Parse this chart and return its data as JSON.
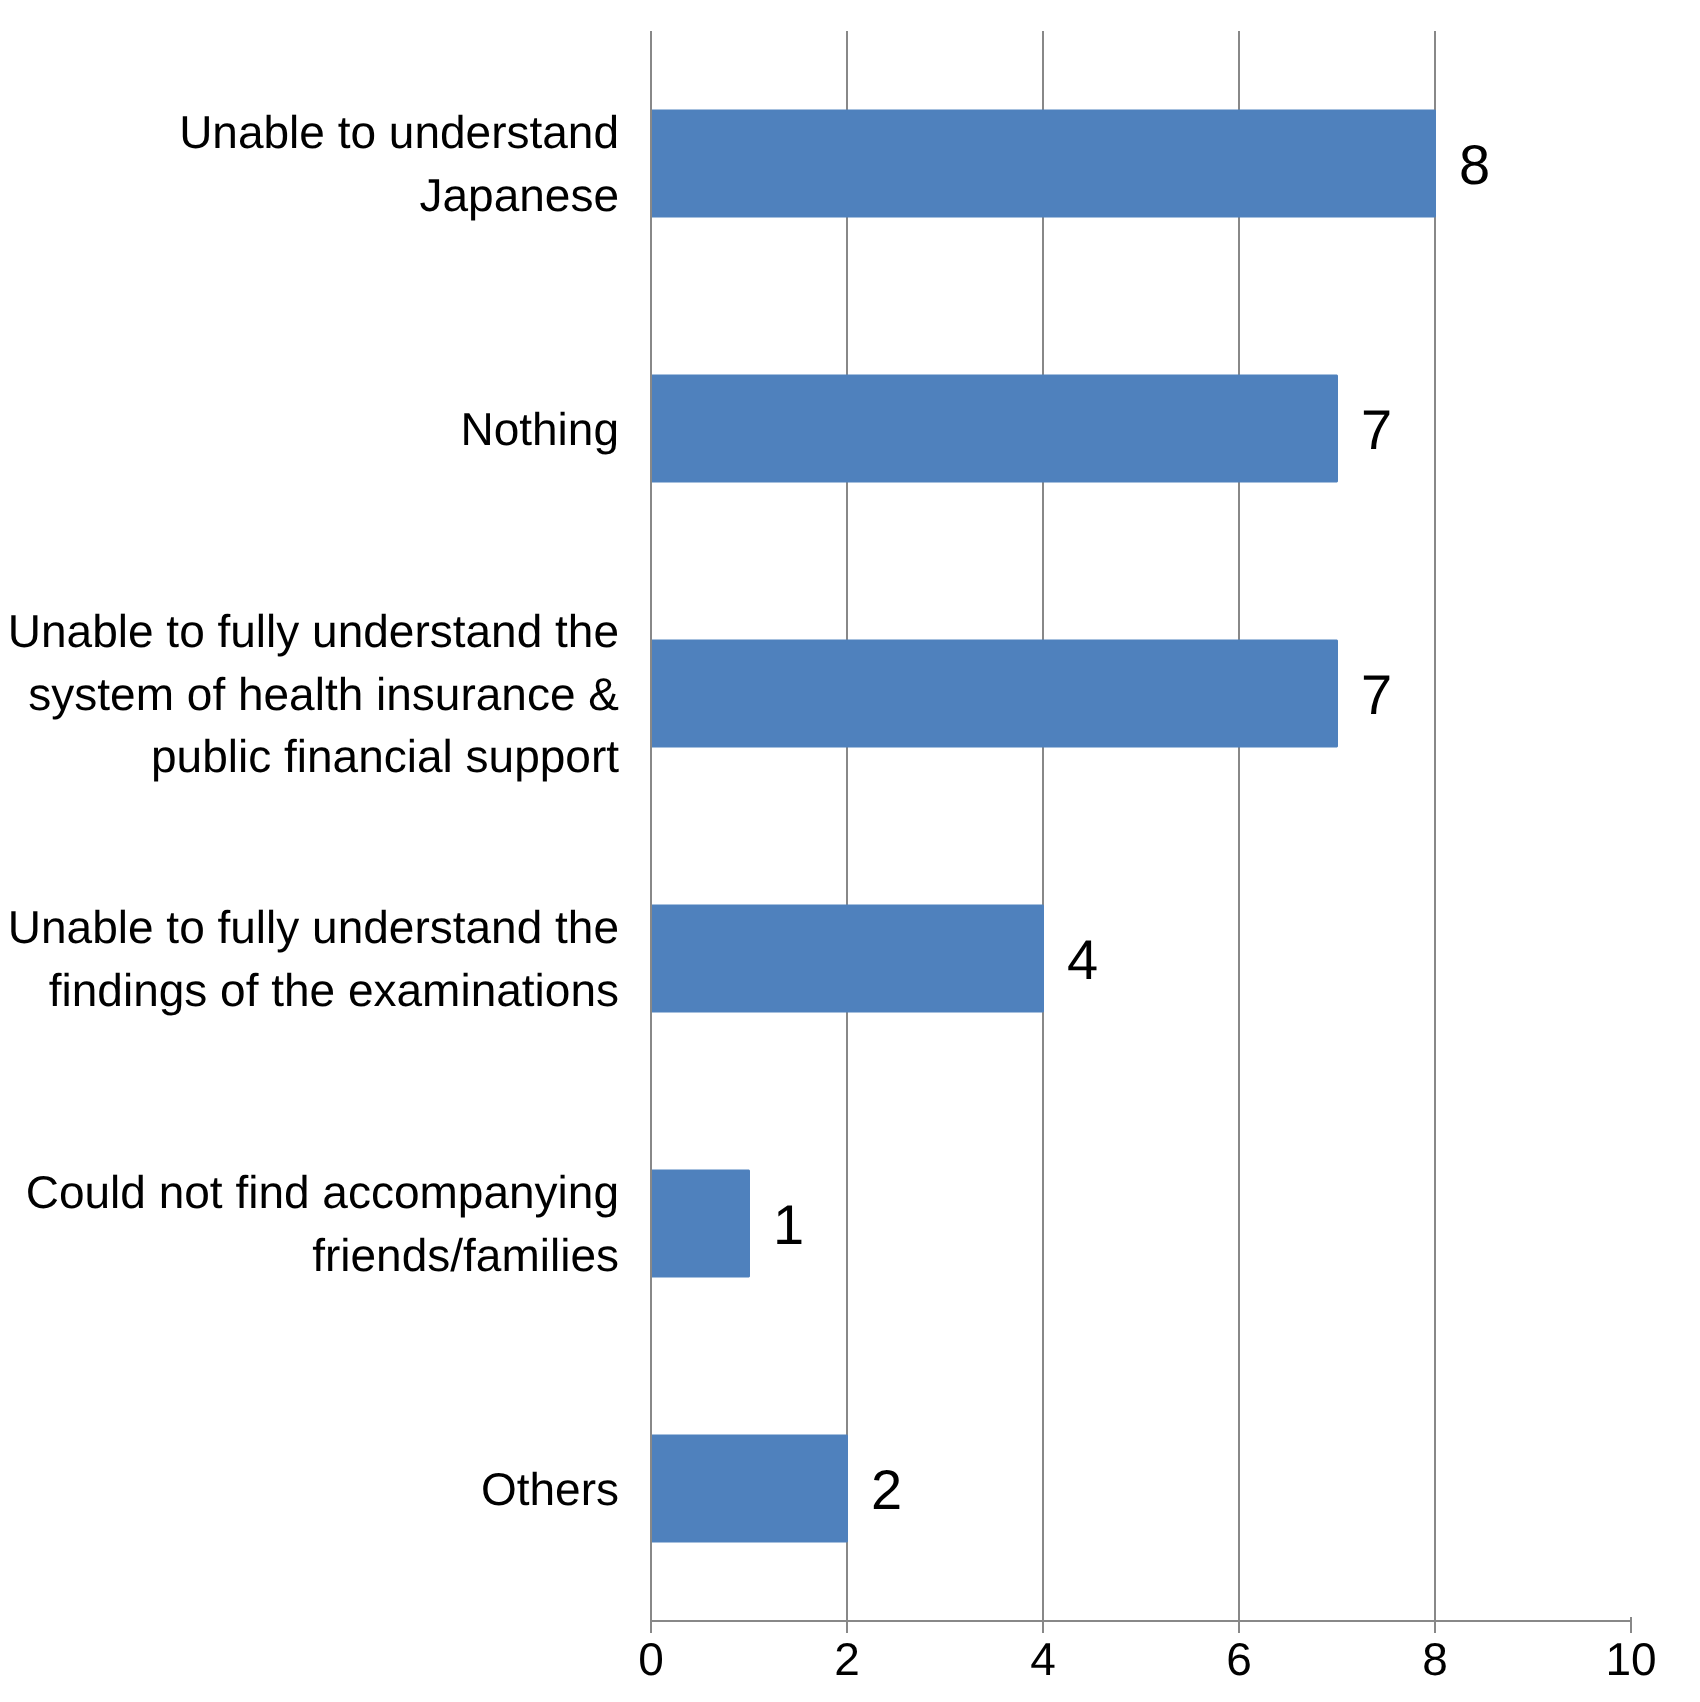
{
  "chart_data": {
    "type": "bar",
    "orientation": "horizontal",
    "categories": [
      "Unable to understand\nJapanese",
      "Nothing",
      "Unable to fully understand the\nsystem of health insurance &\npublic financial support",
      "Unable to fully understand the\nfindings of the examinations",
      "Could not find accompanying\nfriends/families",
      "Others"
    ],
    "values": [
      8,
      7,
      7,
      4,
      1,
      2
    ],
    "color": "#4f81bd",
    "xlim": [
      0,
      10
    ],
    "xticks": [
      0,
      2,
      4,
      6,
      8,
      10
    ],
    "grid": "x",
    "data_labels": true
  }
}
